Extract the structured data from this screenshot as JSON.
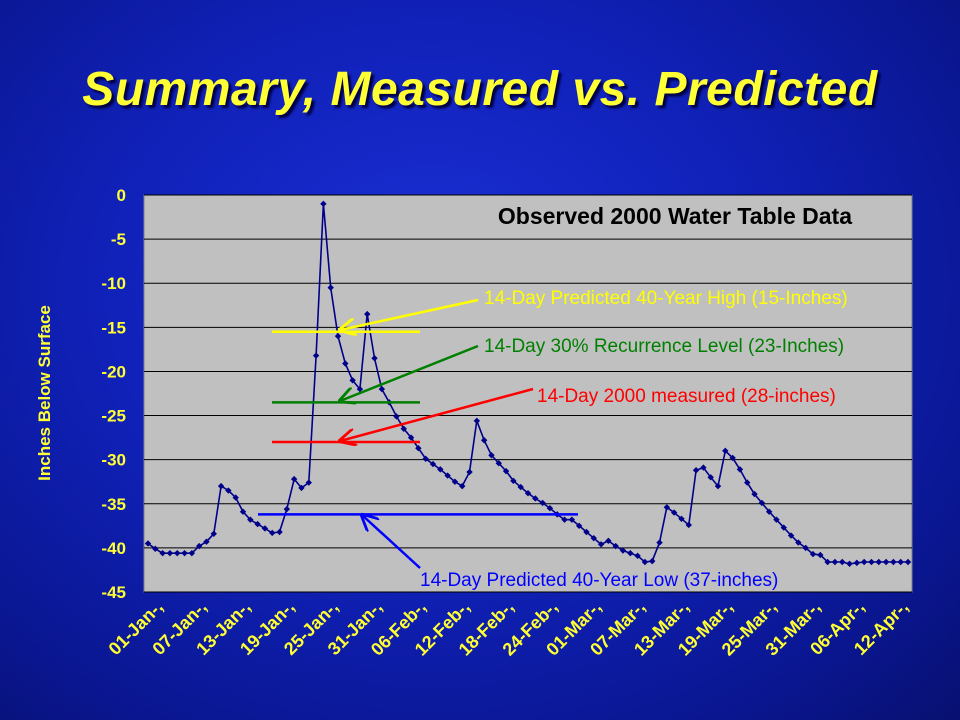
{
  "slide": {
    "title": "Summary, Measured vs. Predicted"
  },
  "chart_data": {
    "type": "line",
    "title": "Observed 2000 Water Table Data",
    "ylabel": "Inches Below Surface",
    "xlabel": "",
    "ylim": [
      -45,
      0
    ],
    "yticks": [
      0,
      -5,
      -10,
      -15,
      -20,
      -25,
      -30,
      -35,
      -40,
      -45
    ],
    "x_tick_labels": [
      "01-Jan-,",
      "07-Jan-,",
      "13-Jan-,",
      "19-Jan-,",
      "25-Jan-,",
      "31-Jan-,",
      "06-Feb-,",
      "12-Feb-,",
      "18-Feb-,",
      "24-Feb-,",
      "01-Mar-,",
      "07-Mar-,",
      "13-Mar-,",
      "19-Mar-,",
      "25-Mar-,",
      "31-Mar-,",
      "06-Apr-,",
      "12-Apr-,"
    ],
    "grid": true,
    "colors": {
      "series": "#00008b",
      "plot_bg": "#c0c0c0",
      "high": "#ffff00",
      "recurrence": "#008000",
      "measured": "#ff0000",
      "low": "#0000ff",
      "tick_text": "#ffff33"
    },
    "series": [
      {
        "values": [
          -39.5,
          -40.1,
          -40.6,
          -40.6,
          -40.6,
          -40.6,
          -40.6,
          -39.8,
          -39.3,
          -38.4,
          -33.0,
          -33.5,
          -34.3,
          -35.9,
          -36.8,
          -37.3,
          -37.8,
          -38.3,
          -38.2,
          -35.6,
          -32.2,
          -33.2,
          -32.6,
          -18.2,
          -1.0,
          -10.5,
          -16.0,
          -19.1,
          -21.0,
          -22.0,
          -13.5,
          -18.5,
          -22.0,
          -23.5,
          -25.1,
          -26.5,
          -27.5,
          -28.7,
          -29.9,
          -30.5,
          -31.1,
          -31.8,
          -32.5,
          -33.0,
          -31.4,
          -25.6,
          -27.8,
          -29.5,
          -30.4,
          -31.3,
          -32.4,
          -33.1,
          -33.8,
          -34.4,
          -34.9,
          -35.5,
          -36.2,
          -36.8,
          -36.8,
          -37.5,
          -38.2,
          -38.9,
          -39.6,
          -39.2,
          -39.8,
          -40.3,
          -40.6,
          -40.9,
          -41.6,
          -41.5,
          -39.4,
          -35.4,
          -36.0,
          -36.7,
          -37.4,
          -31.2,
          -30.9,
          -32.0,
          -33.0,
          -29.0,
          -29.8,
          -31.1,
          -32.6,
          -33.9,
          -34.9,
          -35.9,
          -36.8,
          -37.7,
          -38.6,
          -39.4,
          -40.0,
          -40.7,
          -40.8,
          -41.6,
          -41.6,
          -41.6,
          -41.8,
          -41.7,
          -41.6,
          -41.6,
          -41.6,
          -41.6,
          -41.6,
          -41.6,
          -41.6
        ]
      }
    ],
    "annotations": [
      {
        "text": "14-Day Predicted 40-Year High (15-Inches)",
        "level": -15.5,
        "color": "#ffff00"
      },
      {
        "text": "14-Day 30% Recurrence Level (23-Inches)",
        "level": -23.5,
        "color": "#008000"
      },
      {
        "text": "14-Day 2000 measured (28-inches)",
        "level": -28.0,
        "color": "#ff0000"
      },
      {
        "text": "14-Day Predicted 40-Year Low (37-inches)",
        "level": -36.2,
        "color": "#0000ff"
      }
    ]
  }
}
